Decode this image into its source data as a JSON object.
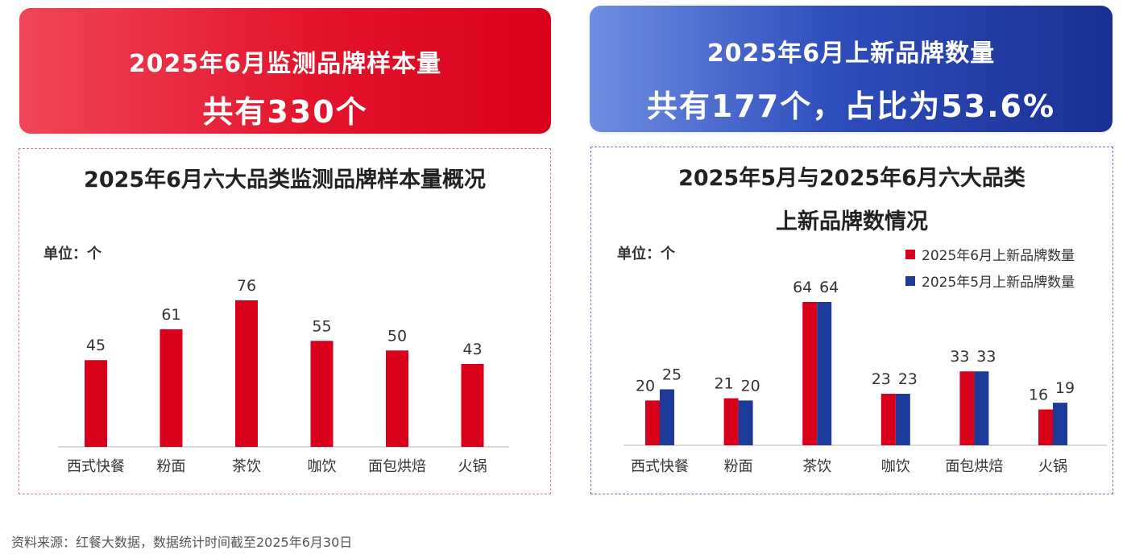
{
  "banners": {
    "left": {
      "line1": "2025年6月监测品牌样本量",
      "line2": "共有330个"
    },
    "right": {
      "line1": "2025年6月上新品牌数量",
      "line2": "共有177个，占比为53.6%"
    }
  },
  "left_panel": {
    "title": "2025年6月六大品类监测品牌样本量概况",
    "unit": "单位：个"
  },
  "right_panel": {
    "title_line1": "2025年5月与2025年6月六大品类",
    "title_line2": "上新品牌数情况",
    "unit": "单位：个"
  },
  "colors": {
    "red": "#d9001b",
    "blue": "#1c3a9a",
    "axis": "#cfcfcf"
  },
  "chart_data": [
    {
      "type": "bar",
      "title": "2025年6月六大品类监测品牌样本量概况",
      "ylabel": "单位：个",
      "categories": [
        "西式快餐",
        "粉面",
        "茶饮",
        "咖饮",
        "面包烘焙",
        "火锅"
      ],
      "values": [
        45,
        61,
        76,
        55,
        50,
        43
      ],
      "ylim": [
        0,
        80
      ],
      "grid": false
    },
    {
      "type": "bar",
      "title": "2025年5月与2025年6月六大品类上新品牌数情况",
      "ylabel": "单位：个",
      "categories": [
        "西式快餐",
        "粉面",
        "茶饮",
        "咖饮",
        "面包烘焙",
        "火锅"
      ],
      "series": [
        {
          "name": "2025年6月上新品牌数量",
          "values": [
            20,
            21,
            64,
            23,
            33,
            16
          ]
        },
        {
          "name": "2025年5月上新品牌数量",
          "values": [
            25,
            20,
            64,
            23,
            33,
            19
          ]
        }
      ],
      "ylim": [
        0,
        70
      ],
      "legend": "top-right",
      "grid": false
    }
  ],
  "source": "资料来源：红餐大数据，数据统计时间截至2025年6月30日"
}
